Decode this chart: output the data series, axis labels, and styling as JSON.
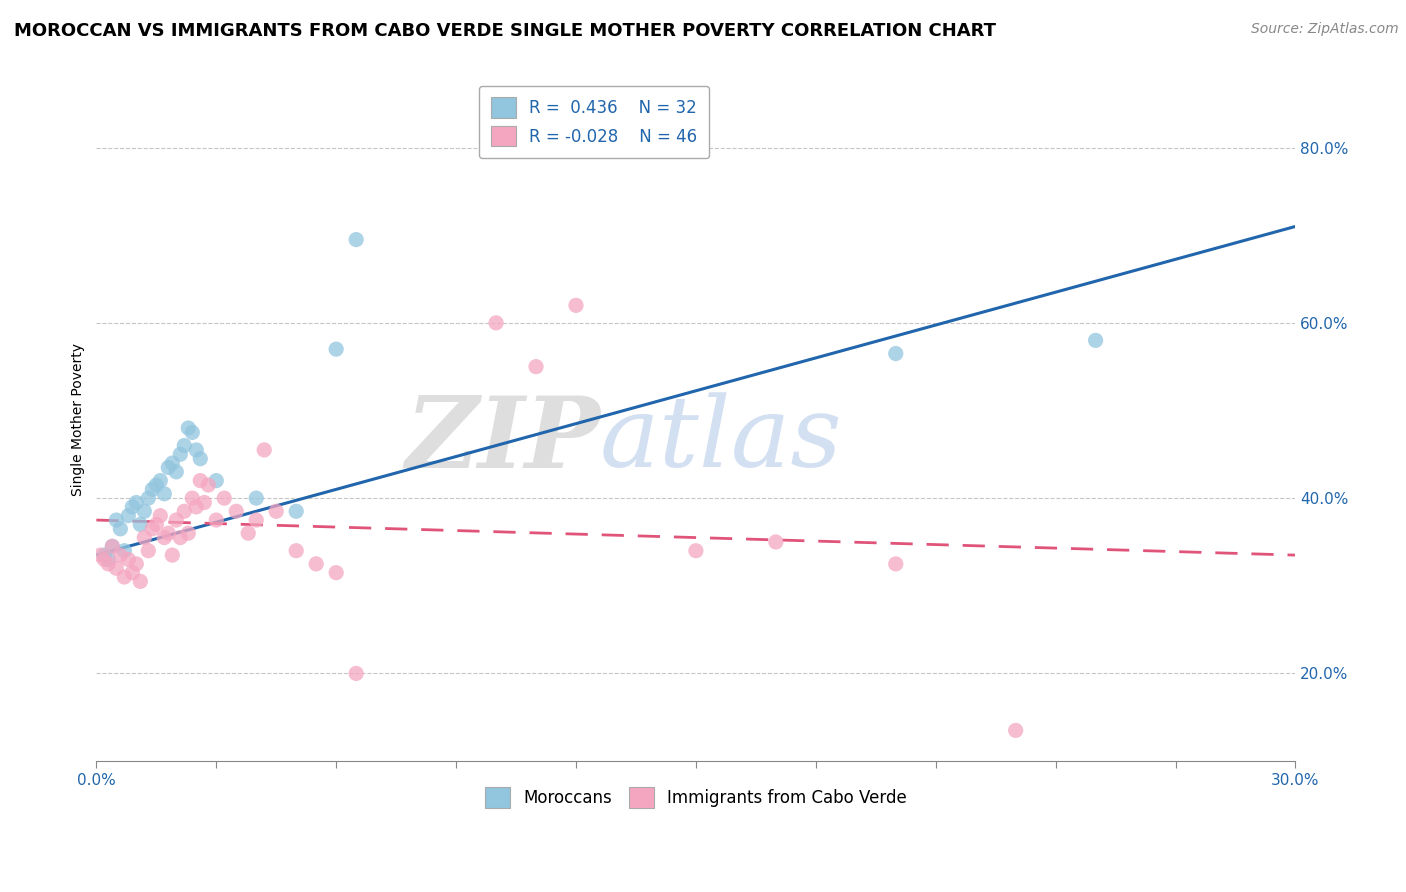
{
  "title": "MOROCCAN VS IMMIGRANTS FROM CABO VERDE SINGLE MOTHER POVERTY CORRELATION CHART",
  "source": "Source: ZipAtlas.com",
  "ylabel": "Single Mother Poverty",
  "xlim": [
    0.0,
    0.3
  ],
  "ylim": [
    0.1,
    0.88
  ],
  "blue_R": 0.436,
  "blue_N": 32,
  "pink_R": -0.028,
  "pink_N": 46,
  "blue_label": "Moroccans",
  "pink_label": "Immigrants from Cabo Verde",
  "blue_color": "#92c5de",
  "pink_color": "#f4a6c0",
  "blue_line_color": "#2166ac",
  "pink_line_color": "#e0547a",
  "watermark_zip": "ZIP",
  "watermark_atlas": "atlas",
  "blue_scatter_x": [
    0.002,
    0.003,
    0.004,
    0.005,
    0.006,
    0.007,
    0.008,
    0.009,
    0.01,
    0.011,
    0.012,
    0.013,
    0.014,
    0.015,
    0.016,
    0.017,
    0.018,
    0.019,
    0.02,
    0.021,
    0.022,
    0.023,
    0.024,
    0.025,
    0.026,
    0.03,
    0.04,
    0.05,
    0.06,
    0.065,
    0.2,
    0.25
  ],
  "blue_scatter_y": [
    0.335,
    0.33,
    0.345,
    0.375,
    0.365,
    0.34,
    0.38,
    0.39,
    0.395,
    0.37,
    0.385,
    0.4,
    0.41,
    0.415,
    0.42,
    0.405,
    0.435,
    0.44,
    0.43,
    0.45,
    0.46,
    0.48,
    0.475,
    0.455,
    0.445,
    0.42,
    0.4,
    0.385,
    0.57,
    0.695,
    0.565,
    0.58
  ],
  "pink_scatter_x": [
    0.001,
    0.002,
    0.003,
    0.004,
    0.005,
    0.006,
    0.007,
    0.008,
    0.009,
    0.01,
    0.011,
    0.012,
    0.013,
    0.014,
    0.015,
    0.016,
    0.017,
    0.018,
    0.019,
    0.02,
    0.021,
    0.022,
    0.023,
    0.024,
    0.025,
    0.026,
    0.027,
    0.028,
    0.03,
    0.032,
    0.035,
    0.038,
    0.04,
    0.042,
    0.045,
    0.05,
    0.055,
    0.06,
    0.065,
    0.1,
    0.11,
    0.12,
    0.15,
    0.17,
    0.2,
    0.23
  ],
  "pink_scatter_y": [
    0.335,
    0.33,
    0.325,
    0.345,
    0.32,
    0.335,
    0.31,
    0.33,
    0.315,
    0.325,
    0.305,
    0.355,
    0.34,
    0.365,
    0.37,
    0.38,
    0.355,
    0.36,
    0.335,
    0.375,
    0.355,
    0.385,
    0.36,
    0.4,
    0.39,
    0.42,
    0.395,
    0.415,
    0.375,
    0.4,
    0.385,
    0.36,
    0.375,
    0.455,
    0.385,
    0.34,
    0.325,
    0.315,
    0.2,
    0.6,
    0.55,
    0.62,
    0.34,
    0.35,
    0.325,
    0.135
  ],
  "title_fontsize": 13,
  "source_fontsize": 10,
  "label_fontsize": 10,
  "tick_fontsize": 11,
  "legend_fontsize": 12
}
